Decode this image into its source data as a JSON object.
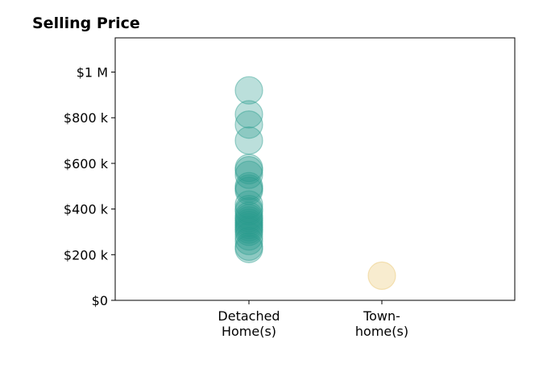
{
  "chart_data": {
    "type": "scatter",
    "title": "Selling Price",
    "xlabel": "",
    "ylabel": "",
    "categories": [
      [
        "Detached",
        "Home(s)"
      ],
      [
        "Town-",
        "home(s)"
      ]
    ],
    "y_ticks": [
      {
        "value": 0,
        "label": "$0"
      },
      {
        "value": 200000,
        "label": "$200 k"
      },
      {
        "value": 400000,
        "label": "$400 k"
      },
      {
        "value": 600000,
        "label": "$600 k"
      },
      {
        "value": 800000,
        "label": "$800 k"
      },
      {
        "value": 1000000,
        "label": "$1 M"
      }
    ],
    "ylim": [
      0,
      1150000
    ],
    "grid": false,
    "series": [
      {
        "category": 0,
        "color": "#2a9d8f",
        "values": [
          920000,
          815000,
          770000,
          700000,
          580000,
          570000,
          550000,
          500000,
          490000,
          480000,
          420000,
          400000,
          390000,
          370000,
          360000,
          350000,
          340000,
          330000,
          320000,
          310000,
          300000,
          280000,
          260000,
          235000,
          225000
        ]
      },
      {
        "category": 1,
        "color": "#e9c46a",
        "values": [
          108000
        ]
      }
    ]
  }
}
